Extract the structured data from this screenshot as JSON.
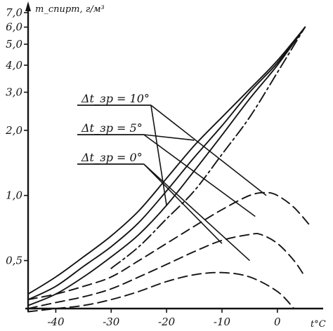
{
  "chart_data": {
    "type": "line",
    "y_scale": "log",
    "x_range": [
      -45,
      7
    ],
    "y_range": [
      0.3,
      7.0
    ],
    "ylabel": "m_спирт, г/м³",
    "xlabel": "t°C",
    "x_ticks": [
      -40,
      -30,
      -20,
      -10,
      0
    ],
    "x_tick_labels": [
      "-40",
      "-30",
      "-20",
      "-10",
      "0"
    ],
    "y_ticks": [
      0.5,
      1.0,
      2.0,
      3.0,
      4.0,
      5.0,
      6.0,
      7.0
    ],
    "y_tick_labels": [
      "0,5",
      "1,0",
      "2,0",
      "3,0",
      "4,0",
      "5,0",
      "6,0",
      "7,0"
    ],
    "grid": false,
    "series": [
      {
        "name": "Δt_зр = 10°",
        "style": "solid",
        "x": [
          -45,
          -40,
          -35,
          -30,
          -25,
          -20,
          -15,
          -10,
          -5,
          0,
          5
        ],
        "y": [
          0.35,
          0.42,
          0.52,
          0.65,
          0.85,
          1.2,
          1.7,
          2.3,
          3.1,
          4.2,
          6.0
        ]
      },
      {
        "name": "Δt_зр = 5°",
        "style": "solid",
        "x": [
          -45,
          -40,
          -35,
          -30,
          -25,
          -20,
          -15,
          -10,
          -5,
          0,
          5
        ],
        "y": [
          0.33,
          0.38,
          0.47,
          0.58,
          0.75,
          1.05,
          1.5,
          2.1,
          3.0,
          4.1,
          6.0
        ]
      },
      {
        "name": "Δt_зр = 0°",
        "style": "solid",
        "x": [
          -45,
          -40,
          -35,
          -30,
          -25,
          -20,
          -15,
          -10,
          -5,
          0,
          5
        ],
        "y": [
          0.31,
          0.35,
          0.42,
          0.52,
          0.66,
          0.9,
          1.3,
          1.9,
          2.8,
          4.0,
          6.0
        ]
      },
      {
        "name": "",
        "style": "dashdot",
        "x": [
          -30,
          -25,
          -20,
          -15,
          -10,
          -5,
          0,
          5
        ],
        "y": [
          0.46,
          0.58,
          0.78,
          1.05,
          1.55,
          2.3,
          3.7,
          6.0
        ]
      },
      {
        "name": "",
        "style": "dashed",
        "x": [
          -45,
          -40,
          -35,
          -30,
          -25,
          -20,
          -15,
          -10,
          -5,
          -2,
          0,
          3,
          6
        ],
        "y": [
          0.33,
          0.35,
          0.38,
          0.42,
          0.5,
          0.6,
          0.72,
          0.86,
          1.0,
          1.03,
          1.0,
          0.88,
          0.72
        ]
      },
      {
        "name": "",
        "style": "dashed",
        "x": [
          -45,
          -40,
          -35,
          -30,
          -25,
          -20,
          -15,
          -10,
          -5,
          -3,
          0,
          3,
          5
        ],
        "y": [
          0.3,
          0.32,
          0.34,
          0.37,
          0.42,
          0.48,
          0.55,
          0.62,
          0.66,
          0.66,
          0.6,
          0.5,
          0.42
        ]
      },
      {
        "name": "",
        "style": "dashed",
        "x": [
          -45,
          -40,
          -35,
          -30,
          -25,
          -20,
          -15,
          -10,
          -5,
          0,
          3
        ],
        "y": [
          0.29,
          0.3,
          0.31,
          0.33,
          0.36,
          0.4,
          0.43,
          0.44,
          0.42,
          0.36,
          0.3
        ]
      }
    ],
    "annotations": [
      {
        "text": "Δt_зр = 10°",
        "pointer_x": [
          -2,
          -20
        ],
        "pointer_y": [
          1.0,
          0.9
        ]
      },
      {
        "text": "Δt_зр = 5°",
        "pointer_x": [
          -4,
          -15
        ],
        "pointer_y": [
          0.8,
          1.8
        ]
      },
      {
        "text": "Δt_зр = 0°",
        "pointer_x": [
          -5,
          -10
        ],
        "pointer_y": [
          0.5,
          0.6
        ]
      }
    ]
  }
}
